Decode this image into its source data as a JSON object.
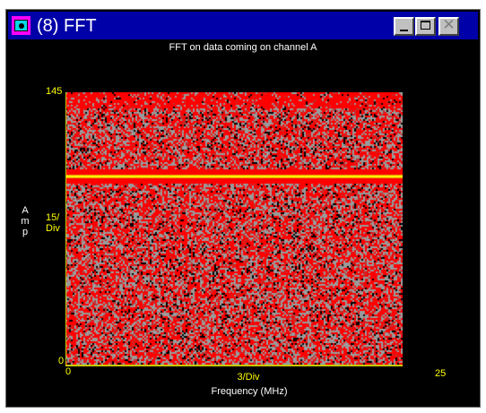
{
  "window": {
    "title": "(8) FFT",
    "icon": "fft-app-icon",
    "buttons": {
      "minimize": "minimize-icon",
      "maximize": "maximize-icon",
      "close": "close-icon"
    }
  },
  "colors": {
    "titlebar": "#0000a8",
    "background": "#000000",
    "axis": "#ffff00",
    "noise_red": "#ff0000",
    "noise_gray": "#9a9a9a"
  },
  "chart_data": {
    "type": "heatmap",
    "title": "FFT on data coming on channel A",
    "xlabel": "Frequency (MHz)",
    "ylabel": "Amp",
    "xlim": [
      0,
      25
    ],
    "ylim": [
      0,
      145
    ],
    "x_div_label": "3/Div",
    "y_div_label": "15/Div",
    "x_ticks": [
      "0",
      "25"
    ],
    "y_ticks": [
      "145",
      "0"
    ],
    "highlight_line": {
      "y": 100,
      "color": "#ffff00"
    },
    "grid": false
  }
}
